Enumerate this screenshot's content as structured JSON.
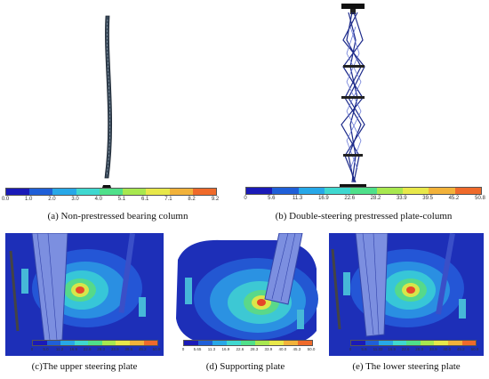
{
  "figure": {
    "panel_a": {
      "caption": "(a) Non-prestressed bearing column",
      "legend_ticks": [
        "0.0",
        "1.0",
        "2.0",
        "3.0",
        "4.0",
        "5.1",
        "6.1",
        "7.1",
        "8.2",
        "9.2"
      ]
    },
    "panel_b": {
      "caption": "(b) Double-steering prestressed plate-column",
      "legend_ticks": [
        "0",
        "5.6",
        "11.3",
        "16.9",
        "22.6",
        "28.2",
        "33.9",
        "39.5",
        "45.2",
        "50.8"
      ]
    },
    "panel_c": {
      "caption": "(c)The upper steering plate",
      "legend_ticks": [
        "0",
        "5.0",
        "11.2",
        "16.9",
        "22.6",
        "28.3",
        "33.9",
        "39.6",
        "45.2",
        "50.9"
      ]
    },
    "panel_d": {
      "caption": "(d) Supporting plate",
      "legend_ticks": [
        "0",
        "5.65",
        "11.3",
        "16.9",
        "22.6",
        "28.3",
        "33.9",
        "40.0",
        "45.3",
        "50.0"
      ]
    },
    "panel_e": {
      "caption": "(e) The lower steering plate",
      "legend_ticks": [
        "0",
        "5.6",
        "11.32",
        "16.9",
        "22.6",
        "28.3",
        "33.9",
        "40.0",
        "45.2",
        "50.9"
      ]
    },
    "colormap": [
      "#1a1ab8",
      "#1f5fd8",
      "#27a8e8",
      "#3fd8d0",
      "#4fe08a",
      "#a8e84f",
      "#e8e84a",
      "#f2b23a",
      "#ef6a2a",
      "#d8202a"
    ]
  }
}
